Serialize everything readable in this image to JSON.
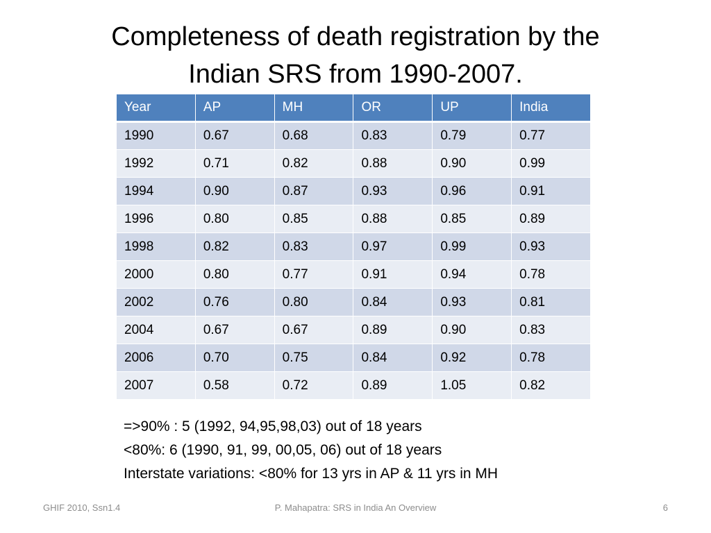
{
  "slide": {
    "title": "Completeness of death registration by the\nIndian SRS from 1990-2007."
  },
  "table": {
    "headers": [
      "Year",
      "AP",
      "MH",
      "OR",
      "UP",
      "India"
    ],
    "rows": [
      [
        "1990",
        "0.67",
        "0.68",
        "0.83",
        "0.79",
        "0.77"
      ],
      [
        "1992",
        "0.71",
        "0.82",
        "0.88",
        "0.90",
        "0.99"
      ],
      [
        "1994",
        "0.90",
        "0.87",
        "0.93",
        "0.96",
        "0.91"
      ],
      [
        "1996",
        "0.80",
        "0.85",
        "0.88",
        "0.85",
        "0.89"
      ],
      [
        "1998",
        "0.82",
        "0.83",
        "0.97",
        "0.99",
        "0.93"
      ],
      [
        "2000",
        "0.80",
        "0.77",
        "0.91",
        "0.94",
        "0.78"
      ],
      [
        "2002",
        "0.76",
        "0.80",
        "0.84",
        "0.93",
        "0.81"
      ],
      [
        "2004",
        "0.67",
        "0.67",
        "0.89",
        "0.90",
        "0.83"
      ],
      [
        "2006",
        "0.70",
        "0.75",
        "0.84",
        "0.92",
        "0.78"
      ],
      [
        "2007",
        "0.58",
        "0.72",
        "0.89",
        "1.05",
        "0.82"
      ]
    ]
  },
  "notes": [
    "=>90% : 5 (1992, 94,95,98,03) out of 18 years",
    "<80%: 6 (1990, 91, 99, 00,05, 06) out of 18 years",
    "Interstate variations: <80% for 13 yrs in AP & 11 yrs in MH"
  ],
  "footer": {
    "left": "GHIF 2010, Ssn1.4",
    "center": "P. Mahapatra: SRS in India An Overview",
    "page_number": "6"
  },
  "colors": {
    "header_bg": "#4f81bd",
    "row_odd_bg": "#d0d8e8",
    "row_even_bg": "#e9edf4"
  }
}
